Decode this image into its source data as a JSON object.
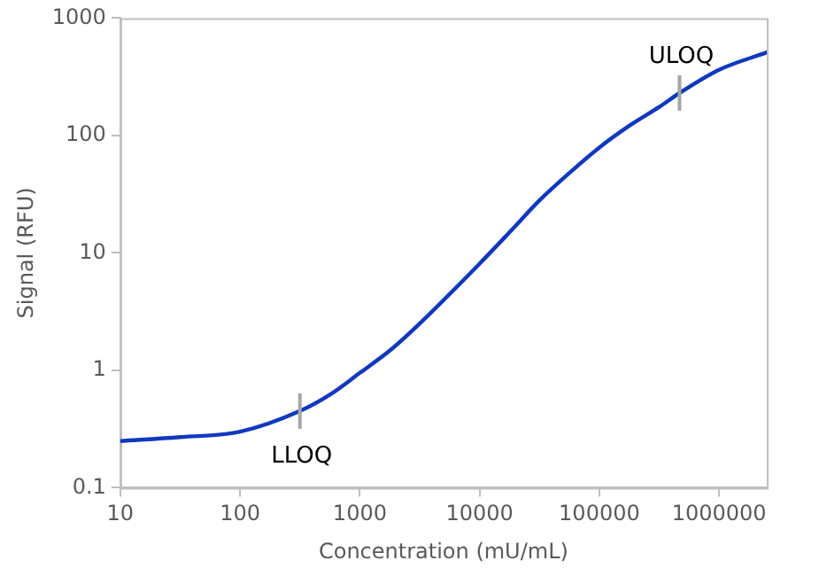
{
  "chart_data": {
    "type": "line",
    "xlabel": "Concentration (mU/mL)",
    "ylabel": "Signal (RFU)",
    "x": [
      10,
      31.6,
      100,
      316,
      562,
      1000,
      1820,
      3162,
      10000,
      17800,
      31623,
      56234,
      100000,
      177828,
      316228,
      467000,
      1000000,
      2500000
    ],
    "series": [
      {
        "color": "#1038c0",
        "values": [
          0.25,
          0.27,
          0.3,
          0.45,
          0.62,
          0.95,
          1.5,
          2.5,
          8.1,
          15,
          28,
          48,
          79,
          121,
          175,
          230,
          363,
          510
        ]
      }
    ],
    "log": "xy",
    "xlim": [
      10,
      2500000
    ],
    "xticks": [
      10,
      100,
      1000,
      10000,
      100000,
      1000000
    ],
    "ylim": [
      0.1,
      1000
    ],
    "yticks": [
      0.1,
      1,
      10,
      100,
      1000
    ],
    "grid": false,
    "legend": false,
    "marker": "none",
    "line_style": "solid",
    "annotations": [
      {
        "text": "LLOQ",
        "x": 316,
        "y": 0.45
      },
      {
        "text": "ULOQ",
        "x": 467000,
        "y": 230
      }
    ]
  }
}
